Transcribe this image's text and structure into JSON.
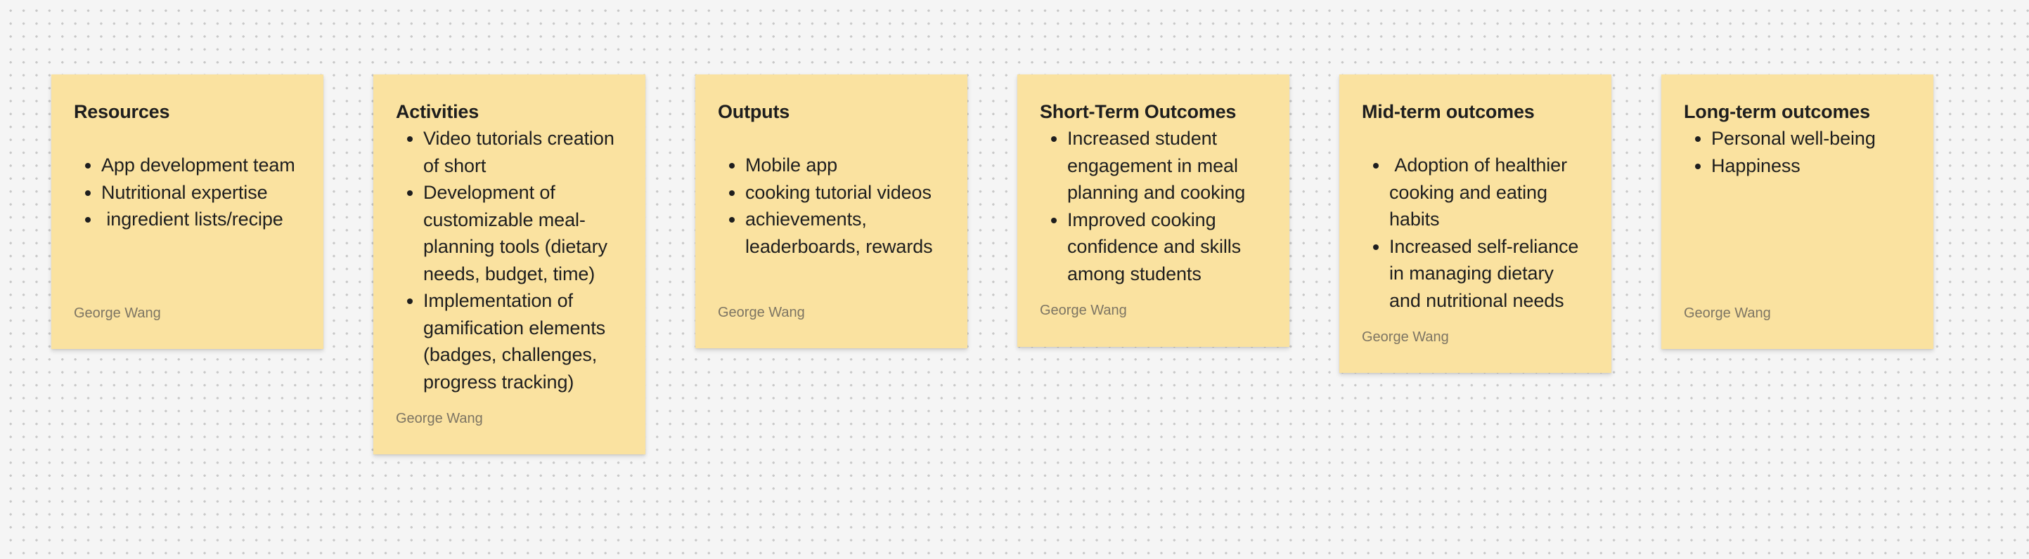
{
  "notes": [
    {
      "title": "Resources",
      "items": [
        "App development team",
        "Nutritional expertise",
        " ingredient lists/recipe"
      ],
      "author": "George Wang"
    },
    {
      "title": "Activities",
      "items": [
        "Video tutorials creation of short",
        "Development of customizable meal-planning tools (dietary needs, budget, time)",
        "Implementation of gamification elements (badges, challenges, progress tracking)"
      ],
      "author": "George Wang"
    },
    {
      "title": "Outputs",
      "items": [
        "Mobile app",
        "cooking tutorial videos",
        "achievements, leaderboards, rewards"
      ],
      "author": "George Wang"
    },
    {
      "title": "Short-Term Outcomes",
      "items": [
        "Increased student engagement in meal planning and cooking",
        "Improved cooking confidence and skills among students"
      ],
      "author": "George Wang"
    },
    {
      "title": "Mid-term outcomes",
      "items": [
        " Adoption of healthier cooking and eating habits",
        "Increased self-reliance in managing dietary and nutritional needs"
      ],
      "author": "George Wang"
    },
    {
      "title": "Long-term outcomes",
      "items": [
        "Personal well-being",
        "Happiness"
      ],
      "author": "George Wang"
    }
  ],
  "colors": {
    "canvas": "#f5f5f5",
    "note": "#fae2a0",
    "text": "#1e1e1e",
    "author": "#7d7563"
  }
}
